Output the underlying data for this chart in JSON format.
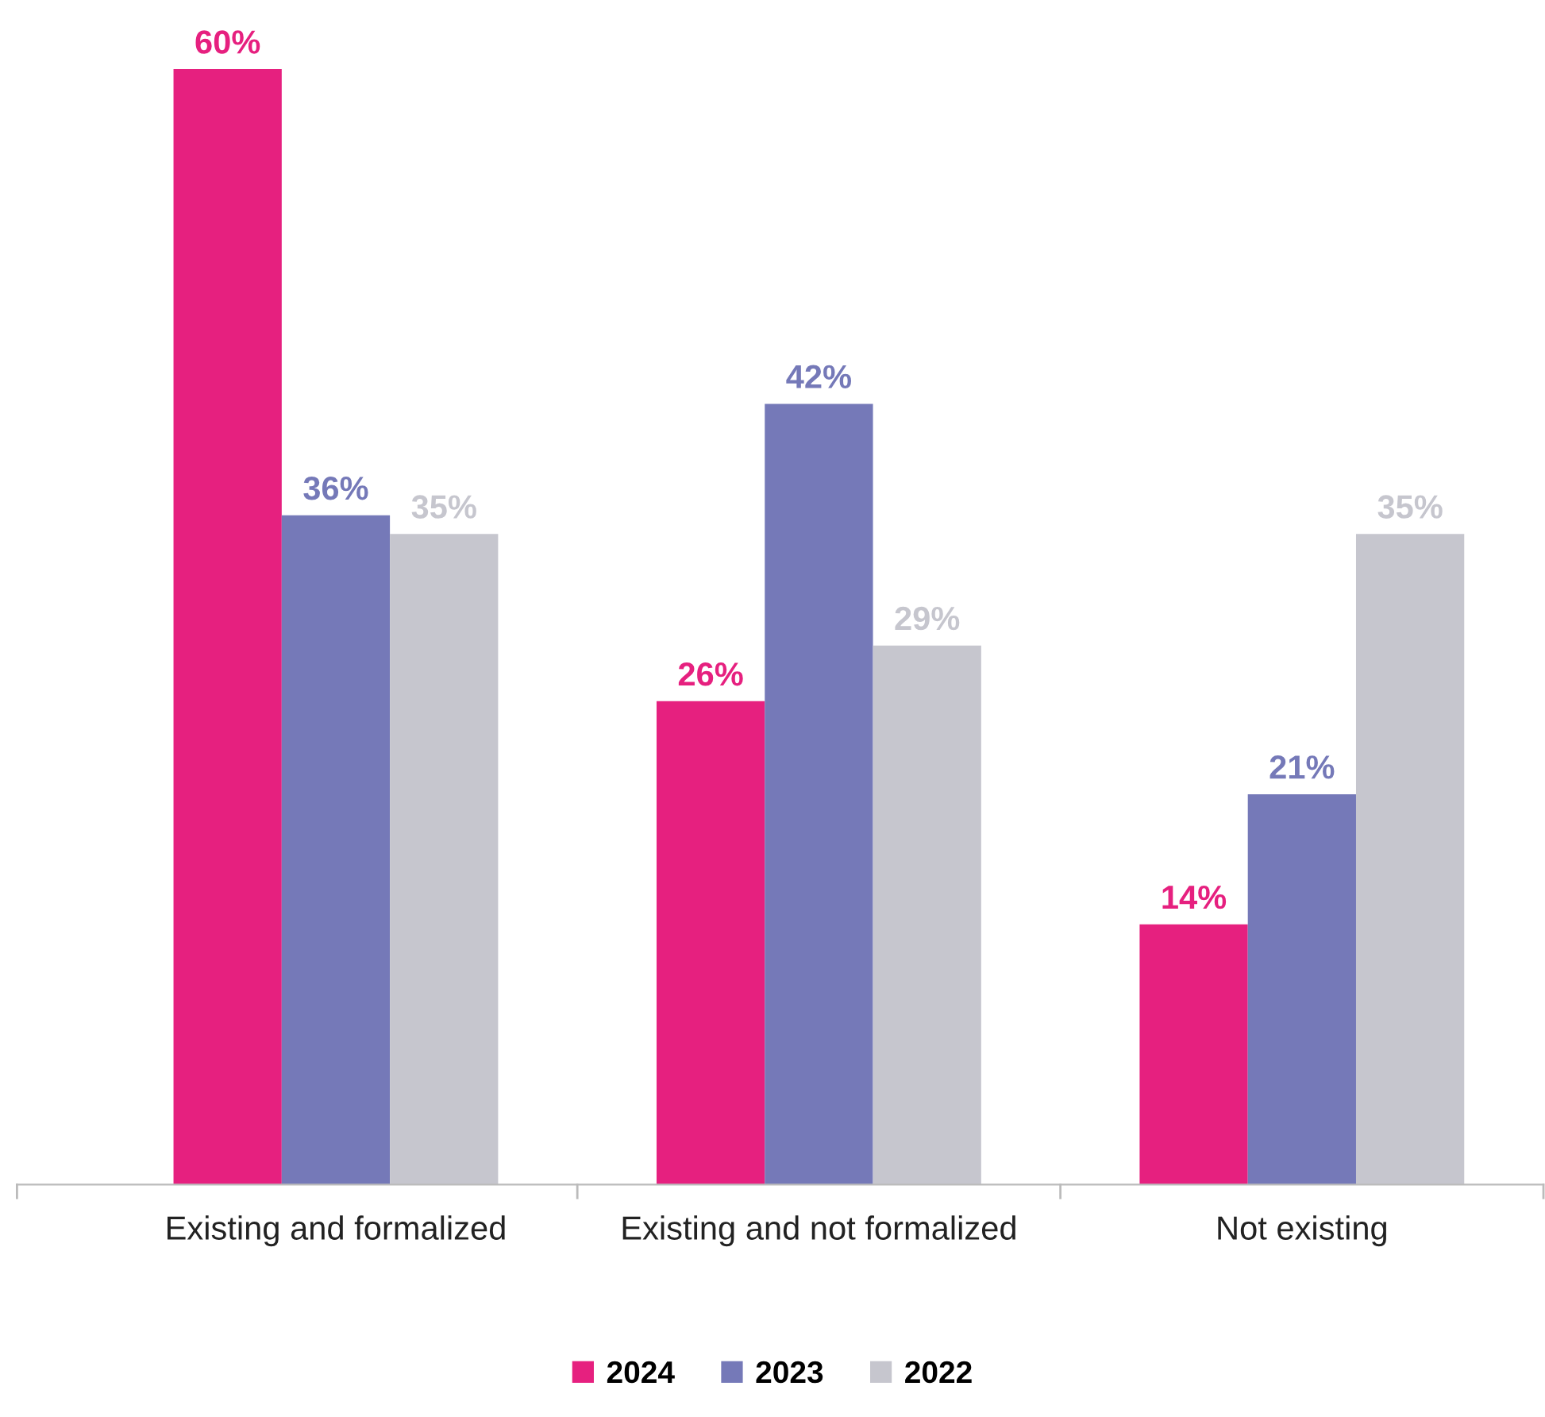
{
  "chart_data": {
    "type": "bar",
    "categories": [
      "Existing and formalized",
      "Existing and not formalized",
      "Not existing"
    ],
    "series": [
      {
        "name": "2024",
        "color": "#e6207f",
        "values": [
          60,
          26,
          14
        ],
        "value_labels": [
          "60%",
          "26%",
          "14%"
        ]
      },
      {
        "name": "2023",
        "color": "#7579b8",
        "values": [
          36,
          42,
          21
        ],
        "value_labels": [
          "36%",
          "42%",
          "21%"
        ]
      },
      {
        "name": "2022",
        "color": "#c6c6ce",
        "values": [
          35,
          29,
          35
        ],
        "value_labels": [
          "35%",
          "29%",
          "35%"
        ]
      }
    ],
    "legend": "bottom",
    "grid": false
  }
}
